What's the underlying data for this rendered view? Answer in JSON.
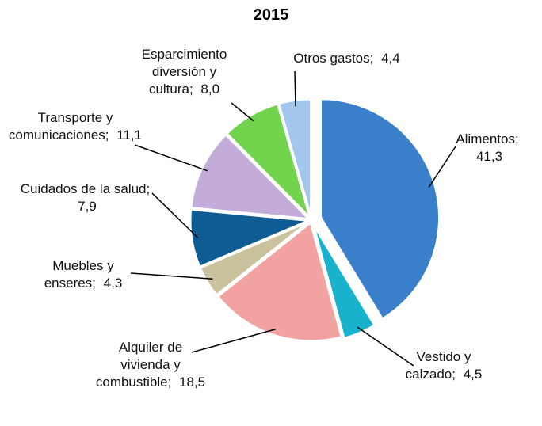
{
  "chart_data": {
    "type": "pie",
    "title": "2015",
    "categories": [
      "Alimentos;",
      "Vestido y calzado;",
      "Alquiler de vivienda y combustible;",
      "Muebles y enseres;",
      "Cuidados de la salud;",
      "Transporte y comunicaciones;",
      "Esparcimiento diversión y cultura;",
      "Otros gastos;"
    ],
    "values": [
      41.3,
      4.5,
      18.5,
      4.3,
      7.9,
      11.1,
      8.0,
      4.4
    ],
    "value_labels": [
      "41,3",
      "4,5",
      "18,5",
      "4,3",
      "7,9",
      "11,1",
      "8,0",
      "4,4"
    ],
    "colors": [
      "#3a7fca",
      "#19b2cc",
      "#f2a3a1",
      "#c9c29c",
      "#0e5c93",
      "#c3acd9",
      "#72d34d",
      "#a2c6ec"
    ]
  }
}
